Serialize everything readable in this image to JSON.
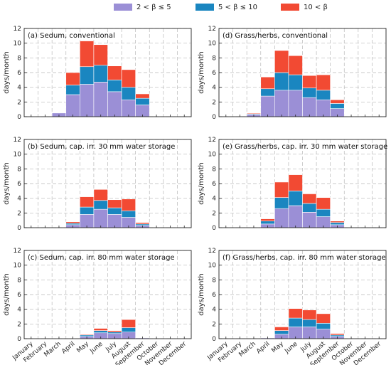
{
  "legend": [
    {
      "label": "2 < β ≤ 5",
      "color": "#9b8fd6"
    },
    {
      "label": "5 < β ≤ 10",
      "color": "#1a86c0"
    },
    {
      "label": "10 < β",
      "color": "#f24a33"
    }
  ],
  "chart_data": {
    "type": "bar",
    "stacked": true,
    "grid": true,
    "categories": [
      "January",
      "February",
      "March",
      "April",
      "May",
      "June",
      "July",
      "August",
      "September",
      "October",
      "November",
      "December"
    ],
    "ylabel": "days/month",
    "ylim": [
      0,
      12
    ],
    "yticks": [
      0,
      2,
      4,
      6,
      8,
      10,
      12
    ],
    "series_names": [
      "2 < β ≤ 5",
      "5 < β ≤ 10",
      "10 < β"
    ],
    "panels": [
      {
        "title": "(a) Sedum, conventional",
        "series": [
          {
            "name": "2 < β ≤ 5",
            "values": [
              0,
              0,
              0.5,
              3.0,
              4.4,
              4.7,
              3.4,
              2.3,
              1.6,
              0,
              0,
              0
            ]
          },
          {
            "name": "5 < β ≤ 10",
            "values": [
              0,
              0,
              0,
              1.3,
              2.4,
              2.3,
              1.6,
              1.7,
              0.9,
              0,
              0,
              0
            ]
          },
          {
            "name": "10 < β",
            "values": [
              0,
              0,
              0,
              1.7,
              3.5,
              2.8,
              1.9,
              2.4,
              0.6,
              0,
              0,
              0
            ]
          }
        ]
      },
      {
        "title": "(d) Grass/herbs, conventional",
        "series": [
          {
            "name": "2 < β ≤ 5",
            "values": [
              0,
              0,
              0.3,
              2.8,
              3.6,
              3.6,
              2.6,
              2.3,
              1.1,
              0,
              0,
              0
            ]
          },
          {
            "name": "5 < β ≤ 10",
            "values": [
              0,
              0,
              0.1,
              1.0,
              2.4,
              2.1,
              1.3,
              1.3,
              0.7,
              0,
              0,
              0
            ]
          },
          {
            "name": "10 < β",
            "values": [
              0,
              0,
              0.1,
              1.6,
              3.0,
              2.6,
              1.7,
              2.1,
              0.5,
              0,
              0,
              0
            ]
          }
        ]
      },
      {
        "title": "(b) Sedum, cap. irr. 30 mm water storage",
        "series": [
          {
            "name": "2 < β ≤ 5",
            "values": [
              0,
              0,
              0,
              0.4,
              1.8,
              2.5,
              1.8,
              1.4,
              0.3,
              0,
              0,
              0
            ]
          },
          {
            "name": "5 < β ≤ 10",
            "values": [
              0,
              0,
              0,
              0.2,
              1.0,
              1.2,
              0.9,
              0.9,
              0.2,
              0,
              0,
              0
            ]
          },
          {
            "name": "10 < β",
            "values": [
              0,
              0,
              0,
              0.2,
              1.4,
              1.5,
              1.1,
              1.6,
              0.2,
              0,
              0,
              0
            ]
          }
        ]
      },
      {
        "title": "(e) Grass/herbs, cap. irr. 30 mm water storage",
        "series": [
          {
            "name": "2 < β ≤ 5",
            "values": [
              0,
              0,
              0,
              0.5,
              2.6,
              3.0,
              2.1,
              1.5,
              0.4,
              0,
              0,
              0
            ]
          },
          {
            "name": "5 < β ≤ 10",
            "values": [
              0,
              0,
              0,
              0.4,
              1.5,
              2.0,
              1.2,
              1.0,
              0.3,
              0,
              0,
              0
            ]
          },
          {
            "name": "10 < β",
            "values": [
              0,
              0,
              0,
              0.3,
              2.1,
              2.2,
              1.3,
              1.6,
              0.2,
              0,
              0,
              0
            ]
          }
        ]
      },
      {
        "title": "(c) Sedum, cap. irr. 80 mm water storage",
        "series": [
          {
            "name": "2 < β ≤ 5",
            "values": [
              0,
              0,
              0,
              0,
              0.3,
              0.8,
              0.7,
              0.9,
              0.1,
              0,
              0,
              0
            ]
          },
          {
            "name": "5 < β ≤ 10",
            "values": [
              0,
              0,
              0,
              0,
              0.2,
              0.3,
              0.2,
              0.6,
              0,
              0,
              0,
              0
            ]
          },
          {
            "name": "10 < β",
            "values": [
              0,
              0,
              0,
              0,
              0.1,
              0.3,
              0.2,
              1.1,
              0,
              0,
              0,
              0
            ]
          }
        ]
      },
      {
        "title": "(f) Grass/herbs, cap. irr. 80 mm water storage",
        "series": [
          {
            "name": "2 < β ≤ 5",
            "values": [
              0,
              0,
              0,
              0.1,
              0.6,
              1.6,
              1.6,
              1.3,
              0.3,
              0,
              0,
              0
            ]
          },
          {
            "name": "5 < β ≤ 10",
            "values": [
              0,
              0,
              0,
              0,
              0.5,
              1.2,
              1.0,
              0.8,
              0.2,
              0,
              0,
              0
            ]
          },
          {
            "name": "10 < β",
            "values": [
              0,
              0,
              0,
              0,
              0.5,
              1.3,
              1.3,
              1.3,
              0.2,
              0,
              0,
              0
            ]
          }
        ]
      }
    ]
  }
}
